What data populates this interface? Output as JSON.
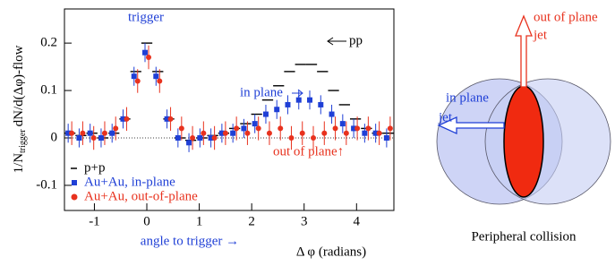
{
  "chart_data": {
    "type": "histogram",
    "ylabel": {
      "main": "1/N",
      "sub": "trigger",
      "rest": "dN/d(Δφ)-flow"
    },
    "xlabel": "Δ φ (radians)",
    "xlabel_hint": "angle to trigger →",
    "annotations": {
      "trigger": "trigger",
      "pp": "pp",
      "in_plane": "in plane",
      "out_of_plane": "out of plane↑"
    },
    "bins": [
      -1.571,
      -1.361,
      -1.152,
      -0.942,
      -0.733,
      -0.524,
      -0.314,
      -0.105,
      0.105,
      0.314,
      0.524,
      0.733,
      0.942,
      1.152,
      1.361,
      1.571,
      1.78,
      1.99,
      2.199,
      2.409,
      2.618,
      2.827,
      3.037,
      3.246,
      3.456,
      3.665,
      3.875,
      4.084,
      4.294,
      4.503,
      4.712
    ],
    "series": [
      {
        "name": "p+p",
        "color": "#000000",
        "style": "step",
        "values": [
          0.01,
          0.005,
          0.01,
          0.0,
          0.01,
          0.04,
          0.14,
          0.2,
          0.14,
          0.04,
          0.0,
          -0.005,
          0.0,
          0.005,
          0.01,
          0.02,
          0.03,
          0.05,
          0.08,
          0.11,
          0.14,
          0.155,
          0.155,
          0.14,
          0.1,
          0.07,
          0.04,
          0.02,
          0.01,
          0.01
        ]
      },
      {
        "name": "Au+Au, in-plane",
        "color": "#1f3fd6",
        "style": "points",
        "marker": "square",
        "values": [
          0.01,
          0.0,
          0.01,
          0.0,
          0.01,
          0.04,
          0.13,
          0.18,
          0.13,
          0.04,
          0.0,
          -0.01,
          0.0,
          0.0,
          0.01,
          0.01,
          0.02,
          0.03,
          0.05,
          0.06,
          0.07,
          0.08,
          0.08,
          0.07,
          0.05,
          0.03,
          0.02,
          0.01,
          0.01,
          0.0
        ],
        "errors": [
          0.02,
          0.02,
          0.02,
          0.02,
          0.02,
          0.02,
          0.02,
          0.02,
          0.02,
          0.02,
          0.02,
          0.02,
          0.02,
          0.02,
          0.02,
          0.02,
          0.02,
          0.02,
          0.02,
          0.02,
          0.02,
          0.02,
          0.02,
          0.02,
          0.02,
          0.02,
          0.02,
          0.02,
          0.02,
          0.02
        ]
      },
      {
        "name": "Au+Au, out-of-plane",
        "color": "#e8321e",
        "style": "points",
        "marker": "circle",
        "values": [
          0.01,
          0.01,
          0.0,
          0.01,
          0.02,
          0.04,
          0.12,
          0.17,
          0.12,
          0.04,
          0.02,
          0.0,
          0.01,
          0.0,
          0.01,
          0.02,
          0.01,
          0.02,
          0.01,
          0.02,
          0.0,
          0.01,
          0.0,
          0.01,
          0.02,
          0.01,
          0.02,
          0.02,
          0.01,
          0.02
        ],
        "errors": [
          0.025,
          0.025,
          0.025,
          0.025,
          0.025,
          0.025,
          0.025,
          0.025,
          0.025,
          0.025,
          0.025,
          0.025,
          0.025,
          0.025,
          0.025,
          0.025,
          0.025,
          0.025,
          0.025,
          0.025,
          0.025,
          0.025,
          0.025,
          0.025,
          0.025,
          0.025,
          0.025,
          0.025,
          0.025,
          0.025
        ]
      }
    ],
    "xlim": [
      -1.571,
      4.712
    ],
    "xticks": [
      -1,
      0,
      1,
      2,
      3,
      4
    ],
    "ylim": [
      -0.153,
      0.272
    ],
    "yticks": [
      -0.1,
      0,
      0.1,
      0.2
    ],
    "zero_line": true
  },
  "diagram": {
    "out_of_plane": "out of plane",
    "out_jet": "jet",
    "in_plane": "in plane",
    "in_jet": "jet",
    "caption": "Peripheral collision"
  }
}
